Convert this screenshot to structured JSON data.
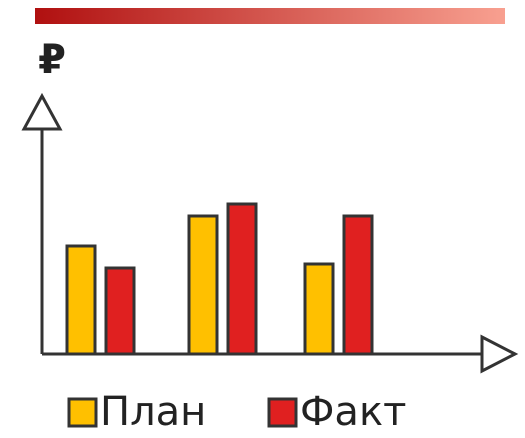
{
  "chart_data": {
    "type": "bar",
    "y_label": "₽",
    "categories": [
      null,
      null,
      null
    ],
    "series": [
      {
        "name": "План",
        "color": "#ffc000",
        "values": [
          108,
          138,
          90
        ]
      },
      {
        "name": "Факт",
        "color": "#e02020",
        "values": [
          86,
          150,
          138
        ]
      }
    ],
    "ylim": [
      0,
      254
    ]
  }
}
